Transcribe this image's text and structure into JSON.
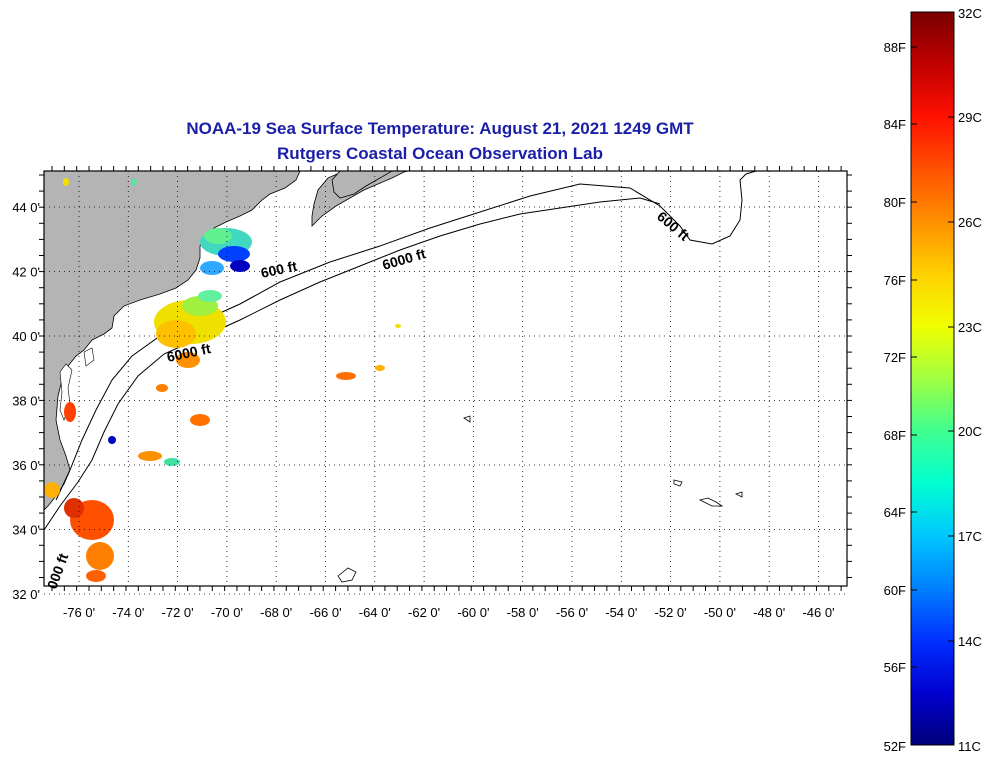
{
  "title": {
    "line1": "NOAA-19 Sea Surface Temperature:  August 21, 2021 1249 GMT",
    "line2": "Rutgers Coastal Ocean Observation Lab"
  },
  "map": {
    "lon_ticks": [
      "-76 0'",
      "-74 0'",
      "-72 0'",
      "-70 0'",
      "-68 0'",
      "-66 0'",
      "-64 0'",
      "-62 0'",
      "-60 0'",
      "-58 0'",
      "-56 0'",
      "-54 0'",
      "-52 0'",
      "-50 0'",
      "-48 0'",
      "-46 0'"
    ],
    "lat_ticks": [
      "44 0'",
      "42 0'",
      "40 0'",
      "38 0'",
      "36 0'",
      "34 0'",
      "32 0'"
    ],
    "contour_labels": [
      "600 ft",
      "6000 ft",
      "600 ft",
      "6000 ft",
      "000 ft"
    ],
    "land_color": "#b4b4b4"
  },
  "colorbar": {
    "fahrenheit": [
      "88F",
      "84F",
      "80F",
      "76F",
      "72F",
      "68F",
      "64F",
      "60F",
      "56F",
      "52F"
    ],
    "celsius": [
      "32C",
      "29C",
      "26C",
      "23C",
      "20C",
      "17C",
      "14C",
      "11C"
    ],
    "colors": [
      "#7a0000",
      "#c00000",
      "#ff1000",
      "#ff5000",
      "#ff9000",
      "#ffd000",
      "#f0ff00",
      "#a0ff40",
      "#40ff90",
      "#00ffd0",
      "#00c8ff",
      "#0080ff",
      "#0030ff",
      "#0000d0",
      "#00007a"
    ]
  }
}
